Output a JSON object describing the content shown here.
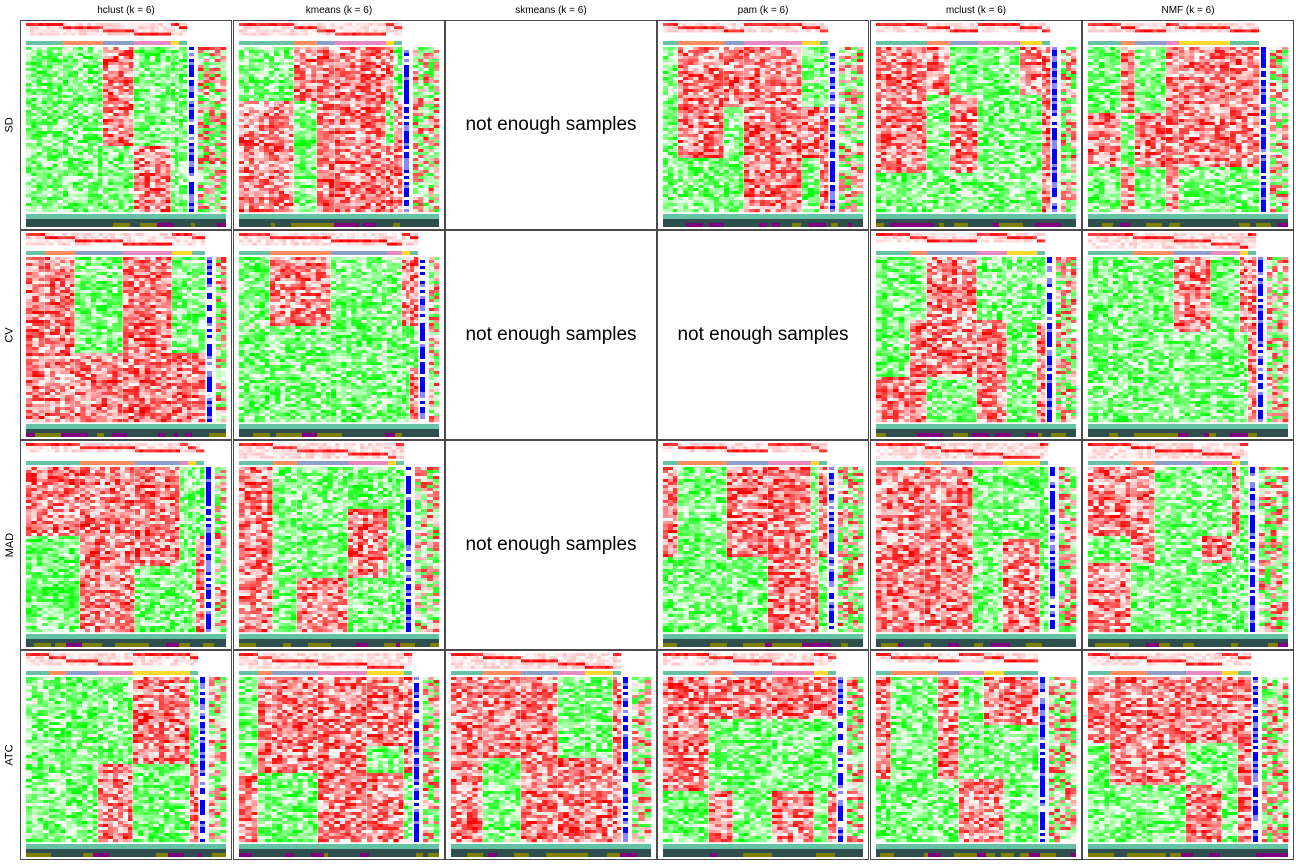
{
  "chart_data": {
    "type": "heatmap",
    "columns": [
      "hclust (k = 6)",
      "kmeans (k = 6)",
      "skmeans (k = 6)",
      "pam (k = 6)",
      "mclust (k = 6)",
      "NMF (k = 6)"
    ],
    "rows": [
      "SD",
      "CV",
      "MAD",
      "ATC"
    ],
    "empty_panel_text": "not enough samples",
    "panels": [
      {
        "row": "SD",
        "column": "hclust (k = 6)",
        "available": true
      },
      {
        "row": "SD",
        "column": "kmeans (k = 6)",
        "available": true
      },
      {
        "row": "SD",
        "column": "skmeans (k = 6)",
        "available": false
      },
      {
        "row": "SD",
        "column": "pam (k = 6)",
        "available": true
      },
      {
        "row": "SD",
        "column": "mclust (k = 6)",
        "available": true
      },
      {
        "row": "SD",
        "column": "NMF (k = 6)",
        "available": true
      },
      {
        "row": "CV",
        "column": "hclust (k = 6)",
        "available": true
      },
      {
        "row": "CV",
        "column": "kmeans (k = 6)",
        "available": true
      },
      {
        "row": "CV",
        "column": "skmeans (k = 6)",
        "available": false
      },
      {
        "row": "CV",
        "column": "pam (k = 6)",
        "available": false
      },
      {
        "row": "CV",
        "column": "mclust (k = 6)",
        "available": true
      },
      {
        "row": "CV",
        "column": "NMF (k = 6)",
        "available": true
      },
      {
        "row": "MAD",
        "column": "hclust (k = 6)",
        "available": true
      },
      {
        "row": "MAD",
        "column": "kmeans (k = 6)",
        "available": true
      },
      {
        "row": "MAD",
        "column": "skmeans (k = 6)",
        "available": false
      },
      {
        "row": "MAD",
        "column": "pam (k = 6)",
        "available": true
      },
      {
        "row": "MAD",
        "column": "mclust (k = 6)",
        "available": true
      },
      {
        "row": "MAD",
        "column": "NMF (k = 6)",
        "available": true
      },
      {
        "row": "ATC",
        "column": "hclust (k = 6)",
        "available": true
      },
      {
        "row": "ATC",
        "column": "kmeans (k = 6)",
        "available": true
      },
      {
        "row": "ATC",
        "column": "skmeans (k = 6)",
        "available": true
      },
      {
        "row": "ATC",
        "column": "pam (k = 6)",
        "available": true
      },
      {
        "row": "ATC",
        "column": "mclust (k = 6)",
        "available": true
      },
      {
        "row": "ATC",
        "column": "NMF (k = 6)",
        "available": true
      }
    ],
    "colors": {
      "high": "#ff0000",
      "mid": "#ffffff",
      "low": "#00ff00",
      "annotation_teal": "#66c2a5",
      "annotation_salmon": "#fc8d62",
      "annotation_lilac": "#8da0cb",
      "annotation_pink": "#e78ac3",
      "annotation_yellow": "#ffd92f",
      "silhouette_blue": "#0000ff",
      "bottom_dark": "#2f4f4f",
      "bottom_olive": "#808000",
      "bottom_purple": "#800080"
    }
  }
}
